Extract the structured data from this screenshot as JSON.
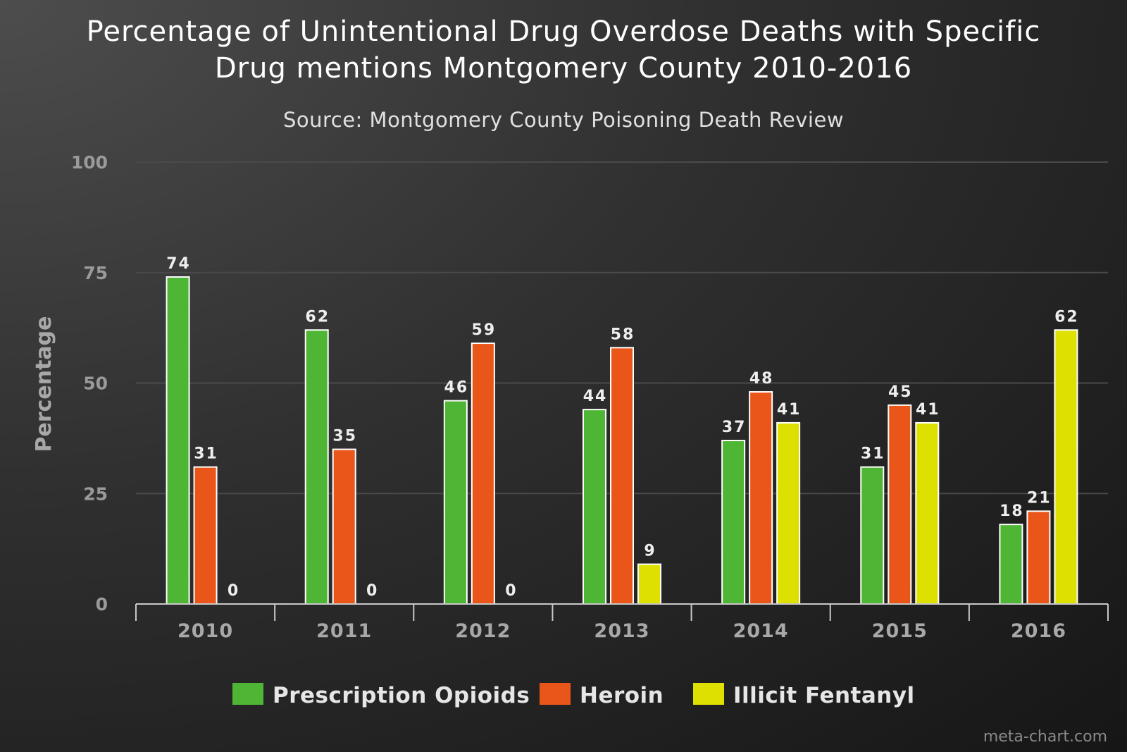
{
  "chart_data": {
    "type": "bar",
    "title": "Percentage of Unintentional Drug Overdose Deaths with Specific Drug mentions Montgomery County 2010-2016",
    "title_lines": [
      "Percentage of Unintentional Drug Overdose Deaths with Specific",
      "Drug mentions Montgomery County 2010-2016"
    ],
    "subtitle": "Source: Montgomery County Poisoning Death Review",
    "xlabel": "",
    "ylabel": "Percentage",
    "ylim": [
      0,
      100
    ],
    "yticks": [
      0,
      25,
      50,
      75,
      100
    ],
    "grid": true,
    "legend_position": "bottom",
    "categories": [
      "2010",
      "2011",
      "2012",
      "2013",
      "2014",
      "2015",
      "2016"
    ],
    "series": [
      {
        "name": "Prescription Opioids",
        "color": "#4fb534",
        "values": [
          74,
          62,
          46,
          44,
          37,
          31,
          18
        ]
      },
      {
        "name": "Heroin",
        "color": "#ea5519",
        "values": [
          31,
          35,
          59,
          58,
          48,
          45,
          21
        ]
      },
      {
        "name": "Illicit Fentanyl",
        "color": "#dde000",
        "values": [
          0,
          0,
          0,
          9,
          41,
          41,
          62
        ]
      }
    ],
    "credit": "meta-chart.com"
  }
}
